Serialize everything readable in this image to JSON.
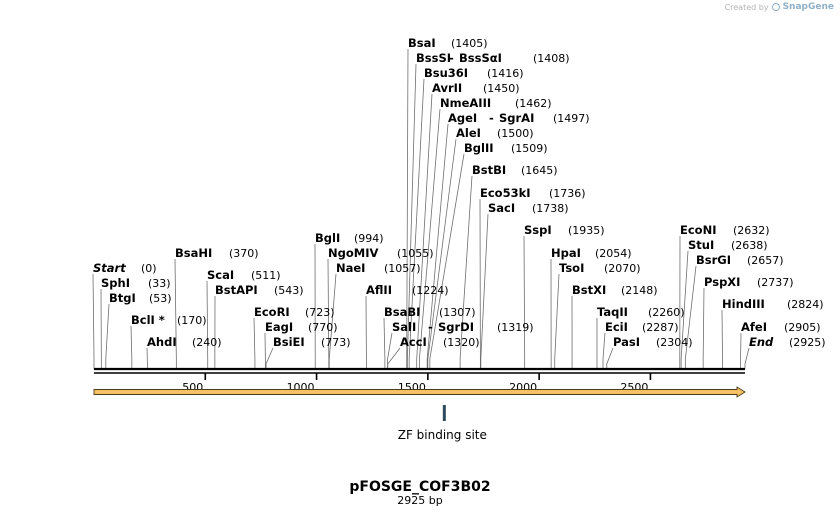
{
  "credit": {
    "text": "Created by",
    "brand": "SnapGene",
    "icon": "snapgene-logo-icon"
  },
  "map": {
    "length": 2925,
    "ticks": [
      {
        "pos": 500,
        "label": "500"
      },
      {
        "pos": 1000,
        "label": "1000"
      },
      {
        "pos": 1500,
        "label": "1500"
      },
      {
        "pos": 2000,
        "label": "2000"
      },
      {
        "pos": 2500,
        "label": "2500"
      }
    ],
    "sites": [
      {
        "name": "Start",
        "pos": "(0)",
        "at": 0,
        "italic": true
      },
      {
        "name": "SphI",
        "pos": "(33)",
        "at": 33
      },
      {
        "name": "BtgI",
        "pos": "(53)",
        "at": 53
      },
      {
        "name": "BclI *",
        "pos": "(170)",
        "at": 170
      },
      {
        "name": "AhdI",
        "pos": "(240)",
        "at": 240
      },
      {
        "name": "BsaHI",
        "pos": "(370)",
        "at": 370
      },
      {
        "name": "ScaI",
        "pos": "(511)",
        "at": 511
      },
      {
        "name": "BstAPI",
        "pos": "(543)",
        "at": 543
      },
      {
        "name": "EcoRI",
        "pos": "(723)",
        "at": 723
      },
      {
        "name": "EagI",
        "pos": "(770)",
        "at": 770
      },
      {
        "name": "BsiEI",
        "pos": "(773)",
        "at": 773
      },
      {
        "name": "BglI",
        "pos": "(994)",
        "at": 994
      },
      {
        "name": "NgoMIV",
        "pos": "(1055)",
        "at": 1055
      },
      {
        "name": "NaeI",
        "pos": "(1057)",
        "at": 1057
      },
      {
        "name": "AflII",
        "pos": "(1224)",
        "at": 1224
      },
      {
        "name": "BsaBI",
        "pos": "(1307)",
        "at": 1307
      },
      {
        "name": "SalI",
        "pos": "",
        "at": 1319
      },
      {
        "name": "SgrDI",
        "pos": "(1319)",
        "at": 1319,
        "dash": true
      },
      {
        "name": "AccI",
        "pos": "(1320)",
        "at": 1320
      },
      {
        "name": "BsaI",
        "pos": "(1405)",
        "at": 1405
      },
      {
        "name": "BssSI",
        "pos": "",
        "at": 1408
      },
      {
        "name": "BssSαI",
        "pos": "(1408)",
        "at": 1408,
        "dash": true
      },
      {
        "name": "Bsu36I",
        "pos": "(1416)",
        "at": 1416
      },
      {
        "name": "AvrII",
        "pos": "(1450)",
        "at": 1450
      },
      {
        "name": "NmeAIII",
        "pos": "(1462)",
        "at": 1462
      },
      {
        "name": "AgeI",
        "pos": "",
        "at": 1497
      },
      {
        "name": "SgrAI",
        "pos": "(1497)",
        "at": 1497,
        "dash": true
      },
      {
        "name": "AleI",
        "pos": "(1500)",
        "at": 1500
      },
      {
        "name": "BglII",
        "pos": "(1509)",
        "at": 1509
      },
      {
        "name": "BstBI",
        "pos": "(1645)",
        "at": 1645
      },
      {
        "name": "Eco53kI",
        "pos": "(1736)",
        "at": 1736
      },
      {
        "name": "SacI",
        "pos": "(1738)",
        "at": 1738
      },
      {
        "name": "SspI",
        "pos": "(1935)",
        "at": 1935
      },
      {
        "name": "HpaI",
        "pos": "(2054)",
        "at": 2054
      },
      {
        "name": "TsoI",
        "pos": "(2070)",
        "at": 2070
      },
      {
        "name": "BstXI",
        "pos": "(2148)",
        "at": 2148
      },
      {
        "name": "TaqII",
        "pos": "(2260)",
        "at": 2260
      },
      {
        "name": "EciI",
        "pos": "(2287)",
        "at": 2287
      },
      {
        "name": "PasI",
        "pos": "(2304)",
        "at": 2304
      },
      {
        "name": "EcoNI",
        "pos": "(2632)",
        "at": 2632
      },
      {
        "name": "StuI",
        "pos": "(2638)",
        "at": 2638
      },
      {
        "name": "BsrGI",
        "pos": "(2657)",
        "at": 2657
      },
      {
        "name": "PspXI",
        "pos": "(2737)",
        "at": 2737
      },
      {
        "name": "HindIII",
        "pos": "(2824)",
        "at": 2824
      },
      {
        "name": "AfeI",
        "pos": "(2905)",
        "at": 2905
      },
      {
        "name": "End",
        "pos": "(2925)",
        "at": 2925,
        "italic": true
      }
    ],
    "feature": {
      "label": "ZF binding site",
      "at": 1574,
      "color": "#2d4a5e"
    },
    "arrow": {
      "fill": "#f6c067",
      "stroke": "#4a3b18"
    },
    "colors": {
      "backbone": "#000000",
      "leader": "#6e6e6e"
    }
  },
  "plasmid": {
    "name": "pFOSGE_COF3B02",
    "size": "2925 bp"
  }
}
